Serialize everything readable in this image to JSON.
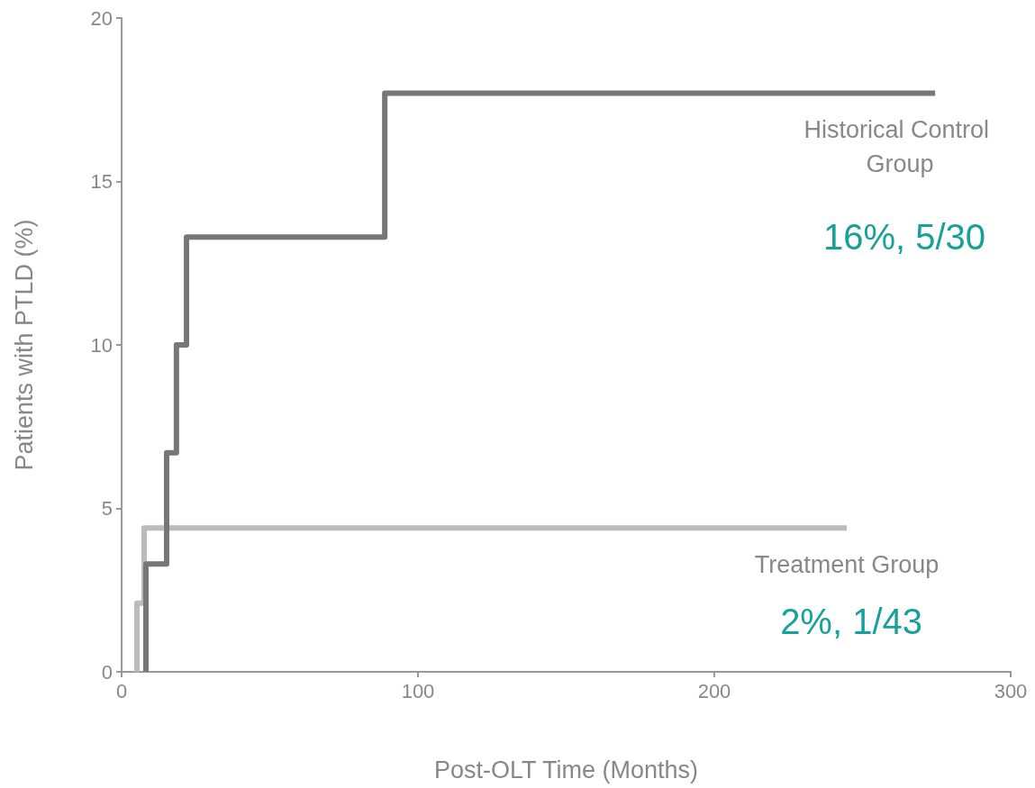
{
  "chart_data": {
    "type": "step",
    "xlabel": "Post-OLT Time (Months)",
    "ylabel": "Patients with PTLD (%)",
    "xlim": [
      0,
      300
    ],
    "xticks": [
      0,
      100,
      200,
      300
    ],
    "ylim": [
      0,
      20
    ],
    "yticks": [
      0,
      5,
      10,
      15,
      20
    ],
    "grid": false,
    "legend": false,
    "marker": "none",
    "series": [
      {
        "name": "Historical Control Group",
        "color": "#777777",
        "x": [
          8.2,
          8.2,
          15.2,
          18.5,
          21.9,
          88.8,
          274.5
        ],
        "values": [
          0,
          3.3,
          6.7,
          10,
          13.3,
          17.7,
          17.7
        ]
      },
      {
        "name": "Treatment Group",
        "color": "#bbbbbb",
        "x": [
          5.2,
          5.2,
          7.6,
          244.7
        ],
        "values": [
          0,
          2.1,
          4.4,
          4.4
        ]
      }
    ],
    "annotations": [
      "16%, 5/30",
      "2%, 1/43"
    ]
  }
}
